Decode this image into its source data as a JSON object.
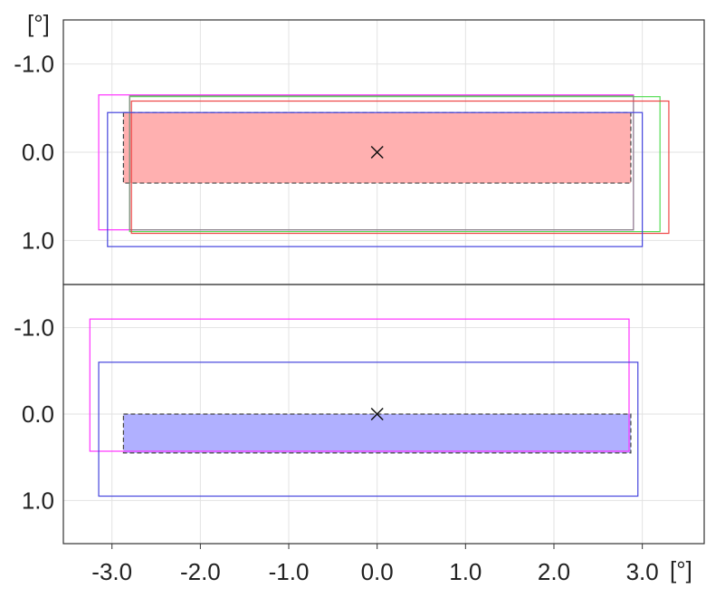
{
  "chart_data": {
    "type": "rectangles",
    "x_unit": "[°]",
    "y_unit": "[°]",
    "xlim": [
      -3.55,
      3.7
    ],
    "xticks": [
      -3.0,
      -2.0,
      -1.0,
      0.0,
      1.0,
      2.0,
      3.0
    ],
    "xtick_labels": [
      "-3.0",
      "-2.0",
      "-1.0",
      "0.0",
      "1.0",
      "2.0",
      "3.0"
    ],
    "grid": true,
    "panels": [
      {
        "ylim": [
          -1.5,
          1.5
        ],
        "y_inverted": true,
        "yticks": [
          -1.0,
          0.0,
          1.0
        ],
        "ytick_labels": [
          "-1.0",
          "0.0",
          "1.0"
        ],
        "center_marker": [
          0.0,
          0.0
        ],
        "filled_region": {
          "x0": -2.87,
          "x1": 2.87,
          "y0": -0.45,
          "y1": 0.35,
          "fill": "#ffb0b0",
          "border": "#444444"
        },
        "outlines": [
          {
            "color": "#ff33ff",
            "x0": -3.15,
            "x1": 2.9,
            "y0": -0.65,
            "y1": 0.88
          },
          {
            "color": "#55dd55",
            "x0": -2.8,
            "x1": 3.2,
            "y0": -0.63,
            "y1": 0.9
          },
          {
            "color": "#888888",
            "x0": -2.8,
            "x1": 2.9,
            "y0": -0.64,
            "y1": 0.88
          },
          {
            "color": "#ee4444",
            "x0": -2.78,
            "x1": 3.3,
            "y0": -0.58,
            "y1": 0.92
          },
          {
            "color": "#4444dd",
            "x0": -3.05,
            "x1": 3.0,
            "y0": -0.45,
            "y1": 1.07
          }
        ]
      },
      {
        "ylim": [
          -1.5,
          1.5
        ],
        "y_inverted": true,
        "yticks": [
          -1.0,
          0.0,
          1.0
        ],
        "ytick_labels": [
          "-1.0",
          "0.0",
          "1.0"
        ],
        "center_marker": [
          0.0,
          0.0
        ],
        "filled_region": {
          "x0": -2.87,
          "x1": 2.87,
          "y0": 0.0,
          "y1": 0.45,
          "fill": "#b0b0ff",
          "border": "#444444"
        },
        "outlines": [
          {
            "color": "#ff33ff",
            "x0": -3.25,
            "x1": 2.85,
            "y0": -1.1,
            "y1": 0.43
          },
          {
            "color": "#4444dd",
            "x0": -3.15,
            "x1": 2.95,
            "y0": -0.6,
            "y1": 0.95
          }
        ]
      }
    ]
  }
}
